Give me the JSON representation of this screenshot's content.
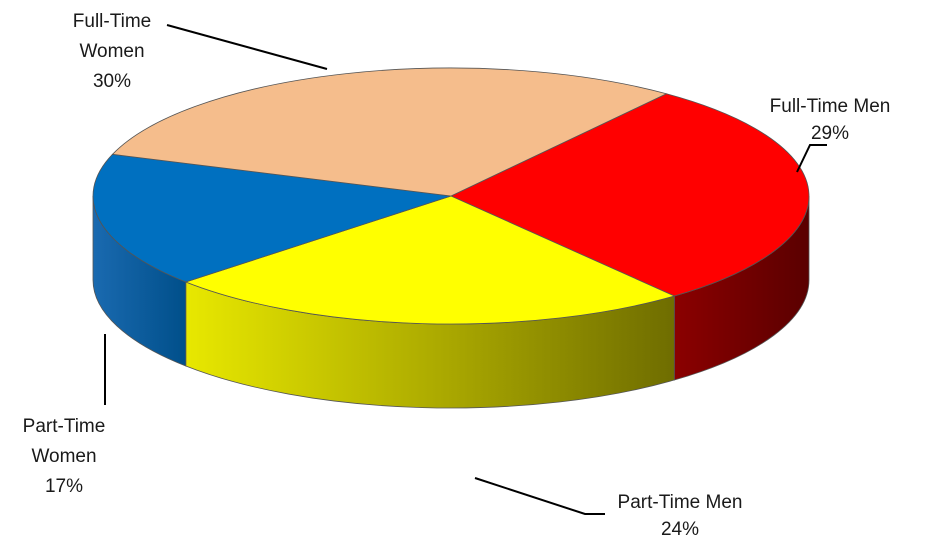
{
  "chart_data": {
    "type": "pie",
    "title": "",
    "style": "3d-exploded-none",
    "slices": [
      {
        "name": "Full-Time Men",
        "value": 29,
        "label_lines": [
          "Full-Time Men",
          "29%"
        ],
        "color": "#ff0000",
        "side_color": "#8b0000"
      },
      {
        "name": "Part-Time Men",
        "value": 24,
        "label_lines": [
          "Part-Time Men",
          "24%"
        ],
        "color": "#ffff00",
        "side_color": "#b5b500"
      },
      {
        "name": "Part-Time Women",
        "value": 17,
        "label_lines": [
          "Part-Time",
          "Women",
          "17%"
        ],
        "color": "#0070c0",
        "side_color": "#004f8a"
      },
      {
        "name": "Full-Time Women",
        "value": 30,
        "label_lines": [
          "Full-Time",
          "Women",
          "30%"
        ],
        "color": "#f5bd8c",
        "side_color": "#c8966a"
      }
    ]
  }
}
